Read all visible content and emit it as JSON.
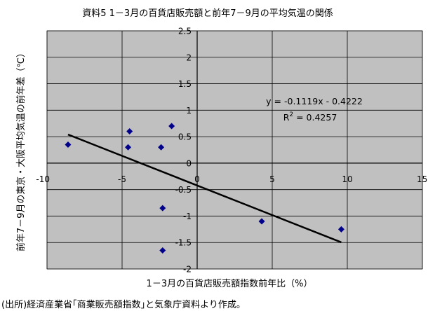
{
  "chart_data": {
    "type": "scatter",
    "title": "資料5 1－3月の百貨店販売額と前年7－9月の平均気温の関係",
    "xlabel": "1－3月の百貨店販売額指数前年比（%）",
    "ylabel": "前年7－9月の東京・大阪平均気温の前年差（℃）",
    "xlim": [
      -10,
      15
    ],
    "ylim": [
      -2,
      2.5
    ],
    "x_ticks": [
      "-10",
      "-5",
      "0",
      "5",
      "10",
      "15"
    ],
    "y_ticks": [
      "2.5",
      "2",
      "1.5",
      "1",
      "0.5",
      "0",
      "-0.5",
      "-1",
      "-1.5",
      "-2"
    ],
    "grid": true,
    "marker_color": "#00008b",
    "plot_background": "#c0c0c0",
    "points": [
      {
        "x": -8.6,
        "y": 0.35
      },
      {
        "x": -4.6,
        "y": 0.3
      },
      {
        "x": -4.5,
        "y": 0.6
      },
      {
        "x": -2.4,
        "y": 0.3
      },
      {
        "x": -1.7,
        "y": 0.7
      },
      {
        "x": -2.3,
        "y": -0.85
      },
      {
        "x": -2.3,
        "y": -1.65
      },
      {
        "x": 4.3,
        "y": -1.1
      },
      {
        "x": 9.6,
        "y": -1.25
      }
    ],
    "trendline": {
      "slope": -0.1119,
      "intercept": -0.4222,
      "x_range": [
        -8.6,
        9.6
      ],
      "equation_label": "y = -0.1119x - 0.4222",
      "r2_prefix": "R",
      "r2_sup": "2",
      "r2_suffix": " = 0.4257"
    }
  },
  "source_note": "(出所)経済産業省｢商業販売額指数｣と気象庁資料より作成。"
}
